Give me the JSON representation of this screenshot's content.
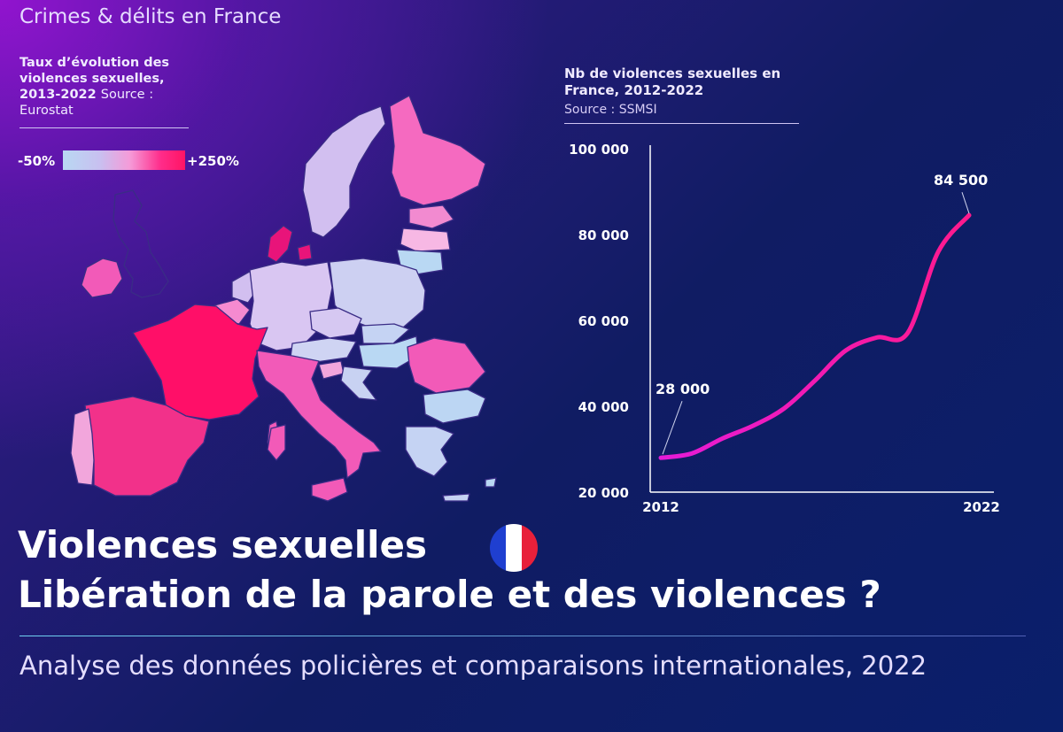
{
  "header": {
    "brand": "Crimes & délits en France"
  },
  "map_panel": {
    "title": "Taux d’évolution des violences sexuelles, 2013-2022",
    "source": "Source : Eurostat",
    "legend_min": "-50%",
    "legend_max": "+250%",
    "colors": {
      "low": "#b9d8f3",
      "mid_low": "#c8c0f0",
      "mid": "#f59ad8",
      "high": "#ff2c8a",
      "max": "#ff1464"
    }
  },
  "chart_data": {
    "type": "line",
    "title": "Nb de violences sexuelles en France, 2012-2022",
    "source": "Source : SSMSI",
    "x": [
      2012,
      2013,
      2014,
      2015,
      2016,
      2017,
      2018,
      2019,
      2020,
      2021,
      2022
    ],
    "series": [
      {
        "values": [
          28000,
          29000,
          32500,
          35500,
          39500,
          46000,
          53000,
          56000,
          57000,
          76000,
          84500
        ],
        "color": "#ff1aa6"
      }
    ],
    "xlim": [
      2012,
      2022
    ],
    "ylim": [
      20000,
      100000
    ],
    "xticks": [
      "2012",
      "2022"
    ],
    "yticks": [
      "100 000",
      "80 000",
      "60 000",
      "40 000",
      "20 000"
    ],
    "annotations": {
      "start": "28 000",
      "end": "84 500"
    },
    "grid": false
  },
  "footer": {
    "title_line1": "Violences sexuelles",
    "title_line2": "Libération de la parole et des violences ?",
    "subtitle": "Analyse des données policières et comparaisons internationales, 2022",
    "flag_colors": [
      "#1f3fd0",
      "#ffffff",
      "#e8203a"
    ]
  }
}
